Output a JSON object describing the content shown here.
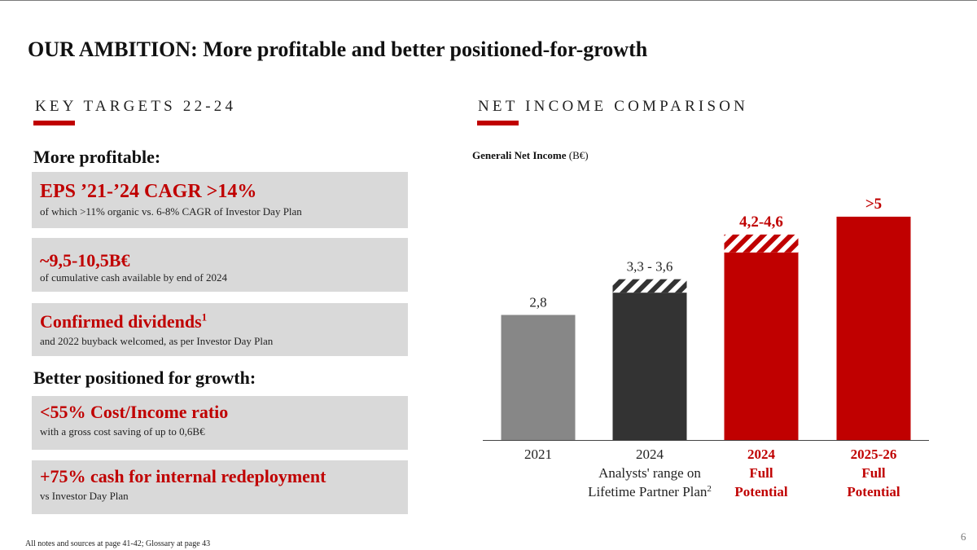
{
  "title": "OUR AMBITION: More profitable and better positioned-for-growth",
  "left_section": {
    "heading": "KEY TARGETS 22-24",
    "group1_heading": "More profitable:",
    "group2_heading": "Better positioned for growth:",
    "cards": [
      {
        "main": "EPS ’21-’24 CAGR >14%",
        "sub": "of which >11% organic vs. 6-8% CAGR of Investor Day Plan"
      },
      {
        "main": "~9,5-10,5B€",
        "sub": "of cumulative cash available by end of 2024"
      },
      {
        "main": "Confirmed dividends",
        "sup": "1",
        "sub": "and 2022 buyback welcomed, as per Investor Day Plan"
      },
      {
        "main": "<55% Cost/Income ratio",
        "sub": "with a gross cost saving of up to 0,6B€"
      },
      {
        "main": "+75% cash for internal redeployment",
        "sub": "vs Investor Day Plan"
      }
    ]
  },
  "right_section": {
    "heading": "NET INCOME COMPARISON",
    "chart_title_bold": "Generali Net Income",
    "chart_title_unit": "(B€)"
  },
  "chart_data": {
    "type": "bar",
    "title": "Generali Net Income (B€)",
    "ylim": [
      0,
      5.4
    ],
    "bars": [
      {
        "category": "2021",
        "label_lines": [
          "2021"
        ],
        "value_label": "2,8",
        "low": 2.8,
        "high": 2.8,
        "color": "#878787",
        "label_color": "#222222",
        "label_bold": false
      },
      {
        "category": "2024 Analysts' range on Lifetime Partner Plan",
        "label_lines": [
          "2024",
          "Analysts' range on",
          "Lifetime Partner Plan"
        ],
        "label_sup": "2",
        "value_label": "3,3 - 3,6",
        "low": 3.3,
        "high": 3.6,
        "color": "#333333",
        "label_color": "#222222",
        "label_bold": false
      },
      {
        "category": "2024 Full Potential",
        "label_lines": [
          "2024",
          "Full",
          "Potential"
        ],
        "value_label": "4,2-4,6",
        "low": 4.2,
        "high": 4.6,
        "color": "#c00000",
        "label_color": "#c00000",
        "label_bold": true
      },
      {
        "category": "2025-26 Full Potential",
        "label_lines": [
          "2025-26",
          "Full",
          "Potential"
        ],
        "value_label": ">5",
        "low": 5.0,
        "high": 5.0,
        "color": "#c00000",
        "label_color": "#c00000",
        "label_bold": true
      }
    ]
  },
  "footnote": "All notes and sources at page 41-42; Glossary at page 43",
  "page_number": "6",
  "colors": {
    "accent": "#c00000",
    "card_bg": "#d9d9d9",
    "bar_2021": "#878787",
    "bar_dark": "#333333"
  }
}
